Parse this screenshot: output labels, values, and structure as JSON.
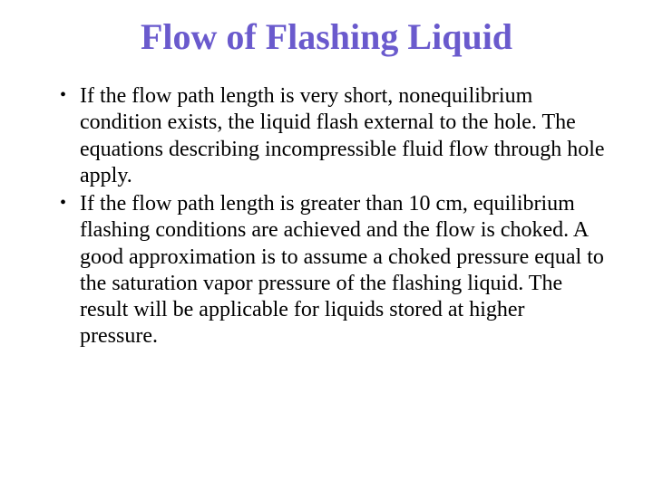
{
  "title": {
    "text": "Flow of Flashing Liquid",
    "color": "#6a5acd",
    "fontsize": 40,
    "weight": "bold",
    "align": "center"
  },
  "body": {
    "color": "#000000",
    "fontsize": 24,
    "bullets": [
      "If the flow path length is very short, nonequilibrium condition exists, the liquid flash external to the hole.  The equations describing incompressible fluid flow through hole apply.",
      "If the flow path length is greater than 10 cm, equilibrium flashing conditions are achieved and the flow is choked.  A good approximation is to assume a choked pressure equal to the saturation vapor pressure of the flashing liquid.  The result will be applicable for liquids stored at higher pressure."
    ]
  },
  "background_color": "#ffffff"
}
